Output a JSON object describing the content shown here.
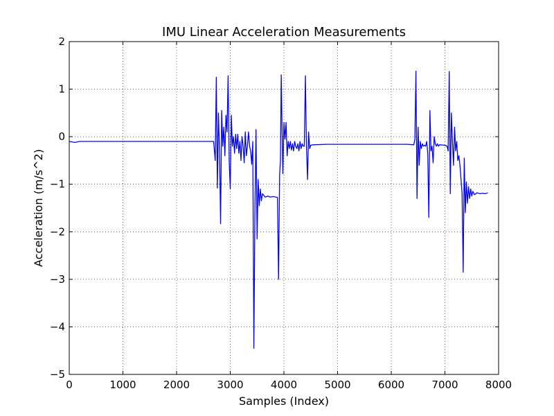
{
  "chart_data": {
    "type": "line",
    "title": "IMU Linear Acceleration Measurements",
    "xlabel": "Samples (Index)",
    "ylabel": "Acceleration (m/s^2)",
    "xlim": [
      0,
      8000
    ],
    "ylim": [
      -5,
      2
    ],
    "xticks": [
      0,
      1000,
      2000,
      3000,
      4000,
      5000,
      6000,
      7000,
      8000
    ],
    "yticks": [
      -5,
      -4,
      -3,
      -2,
      -1,
      0,
      1,
      2
    ],
    "grid": true,
    "grid_style": "dotted",
    "series": [
      {
        "color": "#0000ff",
        "points": [
          [
            0,
            -0.1
          ],
          [
            100,
            -0.12
          ],
          [
            200,
            -0.1
          ],
          [
            400,
            -0.1
          ],
          [
            600,
            -0.1
          ],
          [
            800,
            -0.1
          ],
          [
            1000,
            -0.1
          ],
          [
            1500,
            -0.1
          ],
          [
            2000,
            -0.1
          ],
          [
            2500,
            -0.1
          ],
          [
            2690,
            -0.1
          ],
          [
            2720,
            -0.5
          ],
          [
            2740,
            1.25
          ],
          [
            2760,
            -1.08
          ],
          [
            2780,
            0.5
          ],
          [
            2800,
            -0.3
          ],
          [
            2820,
            -1.83
          ],
          [
            2840,
            0.55
          ],
          [
            2860,
            -0.2
          ],
          [
            2880,
            0.2
          ],
          [
            2900,
            -0.4
          ],
          [
            2920,
            0.45
          ],
          [
            2940,
            0.1
          ],
          [
            2960,
            1.28
          ],
          [
            2980,
            -0.5
          ],
          [
            3000,
            -1.1
          ],
          [
            3020,
            0.45
          ],
          [
            3040,
            -0.2
          ],
          [
            3060,
            0.0
          ],
          [
            3080,
            -0.35
          ],
          [
            3100,
            0.05
          ],
          [
            3120,
            -0.25
          ],
          [
            3140,
            0.05
          ],
          [
            3160,
            -0.35
          ],
          [
            3180,
            -0.1
          ],
          [
            3200,
            -0.5
          ],
          [
            3220,
            0.0
          ],
          [
            3240,
            -0.2
          ],
          [
            3260,
            -0.55
          ],
          [
            3280,
            0.1
          ],
          [
            3300,
            -0.4
          ],
          [
            3320,
            -0.2
          ],
          [
            3340,
            0.1
          ],
          [
            3360,
            -0.2
          ],
          [
            3380,
            -0.3
          ],
          [
            3400,
            -0.58
          ],
          [
            3420,
            -0.1
          ],
          [
            3440,
            -4.45
          ],
          [
            3460,
            -1.5
          ],
          [
            3480,
            0.15
          ],
          [
            3500,
            -2.15
          ],
          [
            3520,
            -0.9
          ],
          [
            3540,
            -1.45
          ],
          [
            3560,
            -1.1
          ],
          [
            3580,
            -1.35
          ],
          [
            3600,
            -1.2
          ],
          [
            3650,
            -1.27
          ],
          [
            3700,
            -1.25
          ],
          [
            3750,
            -1.27
          ],
          [
            3800,
            -1.26
          ],
          [
            3850,
            -1.27
          ],
          [
            3880,
            -1.28
          ],
          [
            3900,
            -3.0
          ],
          [
            3920,
            -0.8
          ],
          [
            3935,
            -0.5
          ],
          [
            3950,
            1.3
          ],
          [
            3965,
            0.2
          ],
          [
            3980,
            -0.78
          ],
          [
            4000,
            0.3
          ],
          [
            4020,
            -0.05
          ],
          [
            4040,
            0.3
          ],
          [
            4060,
            -0.4
          ],
          [
            4080,
            -0.1
          ],
          [
            4100,
            -0.25
          ],
          [
            4120,
            -0.1
          ],
          [
            4140,
            -0.28
          ],
          [
            4160,
            -0.15
          ],
          [
            4180,
            -0.3
          ],
          [
            4200,
            -0.1
          ],
          [
            4220,
            -0.2
          ],
          [
            4240,
            -0.25
          ],
          [
            4260,
            -0.15
          ],
          [
            4280,
            -0.3
          ],
          [
            4300,
            -0.1
          ],
          [
            4320,
            -0.25
          ],
          [
            4340,
            -0.15
          ],
          [
            4360,
            -0.2
          ],
          [
            4380,
            -0.2
          ],
          [
            4400,
            1.28
          ],
          [
            4420,
            -0.2
          ],
          [
            4440,
            -0.9
          ],
          [
            4460,
            0.1
          ],
          [
            4480,
            -0.25
          ],
          [
            4500,
            -0.18
          ],
          [
            4550,
            -0.17
          ],
          [
            4800,
            -0.16
          ],
          [
            5000,
            -0.16
          ],
          [
            5500,
            -0.16
          ],
          [
            6000,
            -0.16
          ],
          [
            6300,
            -0.16
          ],
          [
            6420,
            -0.17
          ],
          [
            6440,
            -0.05
          ],
          [
            6460,
            1.38
          ],
          [
            6480,
            -1.3
          ],
          [
            6500,
            0.2
          ],
          [
            6520,
            -0.6
          ],
          [
            6540,
            -0.1
          ],
          [
            6560,
            -0.25
          ],
          [
            6580,
            -0.15
          ],
          [
            6600,
            -0.2
          ],
          [
            6620,
            -0.18
          ],
          [
            6640,
            -0.2
          ],
          [
            6660,
            -0.1
          ],
          [
            6680,
            -0.35
          ],
          [
            6700,
            -1.7
          ],
          [
            6720,
            0.55
          ],
          [
            6740,
            -0.3
          ],
          [
            6760,
            -0.2
          ],
          [
            6780,
            -0.55
          ],
          [
            6800,
            0.0
          ],
          [
            6820,
            -0.15
          ],
          [
            6840,
            -0.2
          ],
          [
            6860,
            -0.15
          ],
          [
            6880,
            -0.2
          ],
          [
            6900,
            -0.17
          ],
          [
            7000,
            -0.18
          ],
          [
            7040,
            -0.2
          ],
          [
            7060,
            -0.3
          ],
          [
            7080,
            1.37
          ],
          [
            7100,
            -1.2
          ],
          [
            7120,
            0.5
          ],
          [
            7140,
            -0.1
          ],
          [
            7160,
            -0.6
          ],
          [
            7180,
            0.2
          ],
          [
            7200,
            -0.3
          ],
          [
            7220,
            -0.1
          ],
          [
            7240,
            -0.5
          ],
          [
            7260,
            -0.4
          ],
          [
            7280,
            -0.6
          ],
          [
            7300,
            -0.9
          ],
          [
            7320,
            -1.2
          ],
          [
            7340,
            -2.85
          ],
          [
            7360,
            -0.45
          ],
          [
            7380,
            -1.6
          ],
          [
            7400,
            -0.95
          ],
          [
            7420,
            -1.4
          ],
          [
            7440,
            -1.05
          ],
          [
            7460,
            -1.3
          ],
          [
            7480,
            -1.1
          ],
          [
            7500,
            -1.25
          ],
          [
            7520,
            -1.15
          ],
          [
            7550,
            -1.22
          ],
          [
            7600,
            -1.18
          ],
          [
            7650,
            -1.2
          ],
          [
            7700,
            -1.19
          ],
          [
            7750,
            -1.2
          ],
          [
            7800,
            -1.18
          ]
        ]
      }
    ]
  }
}
